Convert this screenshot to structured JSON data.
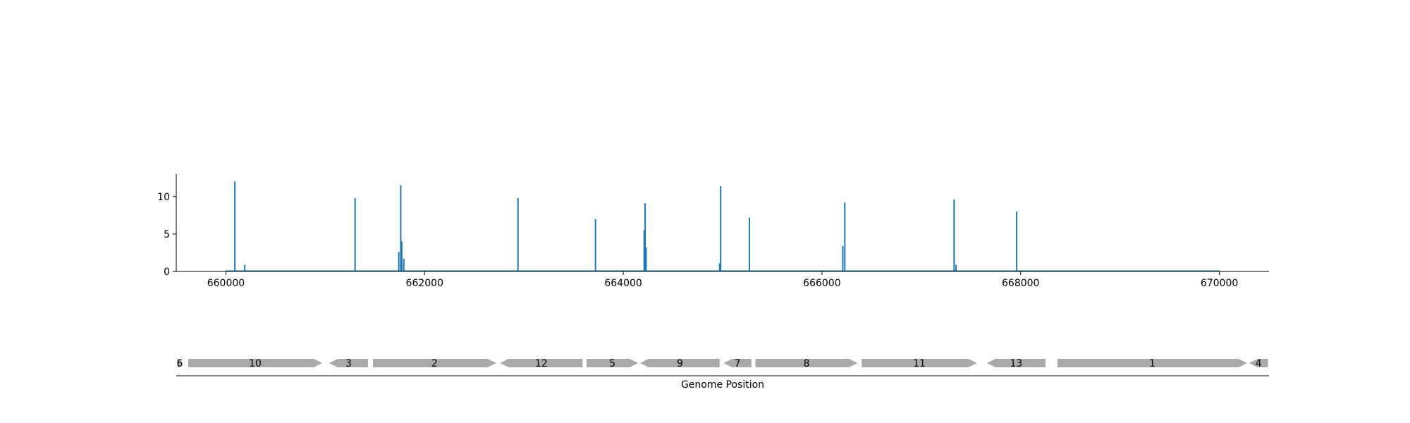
{
  "colors": {
    "signal": "#1f77b4",
    "gene": "#aaaaaa",
    "axis": "#000000",
    "background": "#ffffff"
  },
  "chart_data": [
    {
      "type": "bar",
      "xlim": [
        659500,
        670500
      ],
      "ylim": [
        0,
        13
      ],
      "x_ticks": [
        660000,
        662000,
        664000,
        666000,
        668000,
        670000
      ],
      "x_tick_labels": [
        "660000",
        "662000",
        "664000",
        "666000",
        "668000",
        "670000"
      ],
      "y_ticks": [
        0,
        5,
        10
      ],
      "y_tick_labels": [
        "0",
        "5",
        "10"
      ],
      "baseline": [
        660000,
        670000
      ],
      "grid": false,
      "peaks": [
        {
          "x": 660090,
          "y": 12.0
        },
        {
          "x": 660190,
          "y": 0.9
        },
        {
          "x": 661300,
          "y": 9.8
        },
        {
          "x": 661740,
          "y": 2.6
        },
        {
          "x": 661760,
          "y": 11.5
        },
        {
          "x": 661770,
          "y": 4.0
        },
        {
          "x": 661790,
          "y": 1.7
        },
        {
          "x": 662940,
          "y": 9.8
        },
        {
          "x": 663720,
          "y": 7.0
        },
        {
          "x": 664210,
          "y": 5.5
        },
        {
          "x": 664220,
          "y": 9.1
        },
        {
          "x": 664230,
          "y": 3.2
        },
        {
          "x": 664970,
          "y": 1.1
        },
        {
          "x": 664980,
          "y": 11.4
        },
        {
          "x": 665270,
          "y": 7.2
        },
        {
          "x": 666210,
          "y": 3.4
        },
        {
          "x": 666230,
          "y": 9.2
        },
        {
          "x": 667330,
          "y": 9.6
        },
        {
          "x": 667350,
          "y": 0.9
        },
        {
          "x": 667960,
          "y": 8.0
        }
      ]
    },
    {
      "type": "gene_track",
      "xlabel": "Genome Position",
      "xlim": [
        659500,
        670500
      ],
      "genes": [
        {
          "label": "6",
          "start": 659510,
          "end": 659560,
          "strand": "+"
        },
        {
          "label": "10",
          "start": 659620,
          "end": 660970,
          "strand": "+"
        },
        {
          "label": "3",
          "start": 661040,
          "end": 661430,
          "strand": "-"
        },
        {
          "label": "2",
          "start": 661480,
          "end": 662720,
          "strand": "+"
        },
        {
          "label": "12",
          "start": 662760,
          "end": 663590,
          "strand": "-"
        },
        {
          "label": "5",
          "start": 663630,
          "end": 664150,
          "strand": "+"
        },
        {
          "label": "9",
          "start": 664170,
          "end": 664970,
          "strand": "-"
        },
        {
          "label": "7",
          "start": 665010,
          "end": 665290,
          "strand": "-"
        },
        {
          "label": "8",
          "start": 665330,
          "end": 666360,
          "strand": "+"
        },
        {
          "label": "11",
          "start": 666400,
          "end": 667560,
          "strand": "+"
        },
        {
          "label": "13",
          "start": 667660,
          "end": 668250,
          "strand": "-"
        },
        {
          "label": "1",
          "start": 668370,
          "end": 670280,
          "strand": "+"
        },
        {
          "label": "4",
          "start": 670300,
          "end": 670490,
          "strand": "-"
        }
      ]
    }
  ]
}
